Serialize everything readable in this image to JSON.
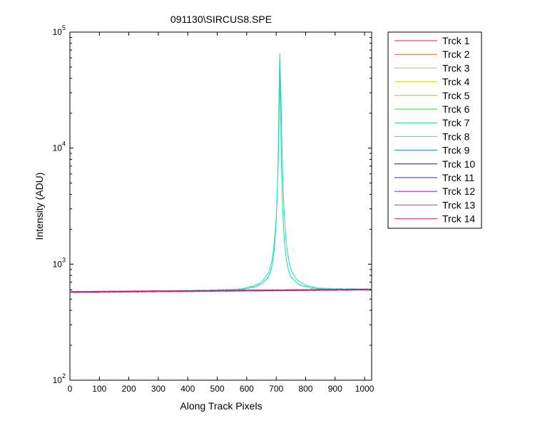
{
  "chart_data": {
    "type": "line",
    "title": "091130\\SIRCUS8.SPE",
    "xlabel": "Along Track Pixels",
    "ylabel": "Intensity (ADU)",
    "xlim": [
      0,
      1024
    ],
    "ylim": [
      100,
      100000
    ],
    "yscale": "log",
    "grid": false,
    "legend_position": "outside-right",
    "x_ticks": [
      0,
      100,
      200,
      300,
      400,
      500,
      600,
      700,
      800,
      900,
      1000
    ],
    "y_ticks": [
      {
        "value": 100,
        "base": "10",
        "exp": "2"
      },
      {
        "value": 1000,
        "base": "10",
        "exp": "3"
      },
      {
        "value": 10000,
        "base": "10",
        "exp": "4"
      },
      {
        "value": 100000,
        "base": "10",
        "exp": "5"
      }
    ],
    "baseline": {
      "x": [
        0,
        1024
      ],
      "y": [
        575,
        605
      ]
    },
    "series": [
      {
        "name": "Trck 1",
        "color": "#e8202a",
        "peak": null
      },
      {
        "name": "Trck 2",
        "color": "#e8641e",
        "peak": null
      },
      {
        "name": "Trck 3",
        "color": "#e8b41e",
        "peak": null
      },
      {
        "name": "Trck 4",
        "color": "#d2dc1e",
        "peak": null
      },
      {
        "name": "Trck 5",
        "color": "#8cdc1e",
        "peak": null
      },
      {
        "name": "Trck 6",
        "color": "#28dc28",
        "peak": null
      },
      {
        "name": "Trck 7",
        "color": "#1edc8c",
        "peak": {
          "x": 712,
          "y": 65000,
          "width": 4
        }
      },
      {
        "name": "Trck 8",
        "color": "#1edcdc",
        "peak": {
          "x": 714,
          "y": 45000,
          "width": 6
        }
      },
      {
        "name": "Trck 9",
        "color": "#1e82c8",
        "peak": null
      },
      {
        "name": "Trck 10",
        "color": "#0a2878",
        "peak": null
      },
      {
        "name": "Trck 11",
        "color": "#3c1ec8",
        "peak": null
      },
      {
        "name": "Trck 12",
        "color": "#a01ec8",
        "peak": null
      },
      {
        "name": "Trck 13",
        "color": "#dc1ec8",
        "peak": null
      },
      {
        "name": "Trck 14",
        "color": "#dc1e64",
        "peak": null
      }
    ]
  }
}
